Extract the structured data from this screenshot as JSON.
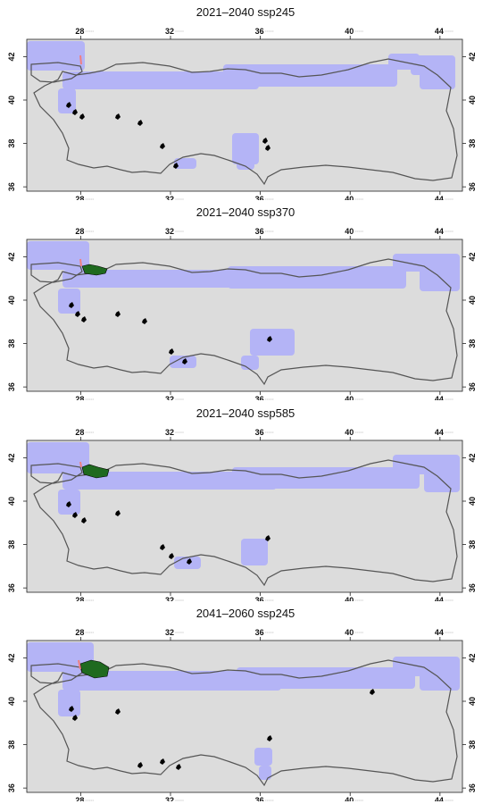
{
  "figure": {
    "panels": [
      {
        "title": "2021–2040 ssp245",
        "variant": 0
      },
      {
        "title": "2021–2040 ssp370",
        "variant": 1
      },
      {
        "title": "2021–2040 ssp585",
        "variant": 2
      },
      {
        "title": "2041–2060 ssp245",
        "variant": 3
      }
    ],
    "x_ticks": [
      {
        "value": 28,
        "label": "28"
      },
      {
        "value": 32,
        "label": "32"
      },
      {
        "value": 36,
        "label": "36"
      },
      {
        "value": 40,
        "label": "40"
      },
      {
        "value": 44,
        "label": "44"
      }
    ],
    "y_ticks": [
      {
        "value": 36,
        "label": "36"
      },
      {
        "value": 38,
        "label": "38"
      },
      {
        "value": 40,
        "label": "40"
      },
      {
        "value": 42,
        "label": "42"
      }
    ],
    "tick_suffix": "°°°°°",
    "extent": {
      "lon_min": 25.6,
      "lon_max": 45.0,
      "lat_min": 35.8,
      "lat_max": 42.8
    },
    "colors": {
      "background": "#dcdcdc",
      "suitable_zone": "#b4b4f6",
      "border": "#555555",
      "high_suitability": "#1f6a1f",
      "current_range": "#000000",
      "highlight": "#f08080"
    }
  }
}
